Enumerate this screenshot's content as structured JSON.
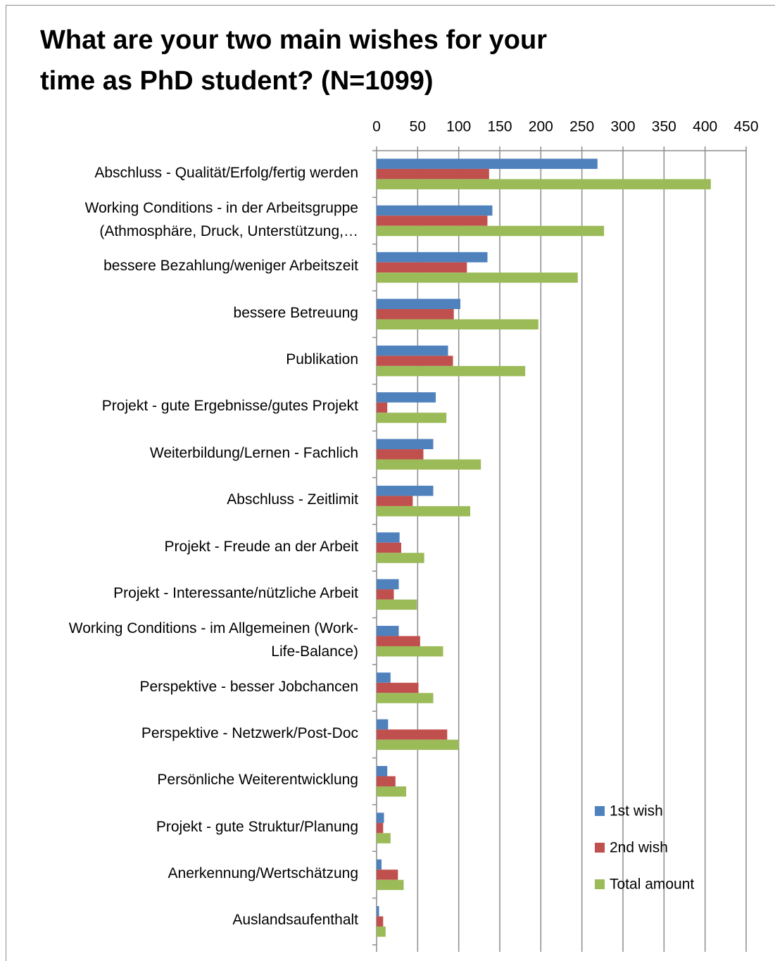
{
  "chart_data": {
    "type": "bar",
    "orientation": "horizontal",
    "title": "What are your two main wishes for your\ntime as PhD student? (N=1099)",
    "categories": [
      "Abschluss - Qualität/Erfolg/fertig werden",
      "Working Conditions - in der Arbeitsgruppe\n(Athmosphäre, Druck, Unterstützung,…",
      "bessere Bezahlung/weniger Arbeitszeit",
      "bessere Betreuung",
      "Publikation",
      "Projekt - gute Ergebnisse/gutes Projekt",
      "Weiterbildung/Lernen - Fachlich",
      "Abschluss - Zeitlimit",
      "Projekt - Freude an der Arbeit",
      "Projekt - Interessante/nützliche Arbeit",
      "Working Conditions - im Allgemeinen (Work-\nLife-Balance)",
      "Perspektive - besser Jobchancen",
      "Perspektive - Netzwerk/Post-Doc",
      "Persönliche Weiterentwicklung",
      "Projekt - gute Struktur/Planung",
      "Anerkennung/Wertschätzung",
      "Auslandsaufenthalt"
    ],
    "series": [
      {
        "name": "1st wish",
        "color": "#4f81bd",
        "values": [
          269,
          141,
          135,
          102,
          87,
          72,
          69,
          69,
          28,
          27,
          27,
          17,
          14,
          13,
          9,
          6,
          3
        ]
      },
      {
        "name": "2nd wish",
        "color": "#c0504d",
        "values": [
          137,
          135,
          110,
          94,
          93,
          13,
          57,
          44,
          30,
          21,
          53,
          51,
          86,
          23,
          8,
          26,
          8
        ]
      },
      {
        "name": "Total amount",
        "color": "#9bbb59",
        "values": [
          407,
          277,
          245,
          197,
          181,
          85,
          127,
          114,
          58,
          49,
          81,
          69,
          100,
          36,
          17,
          33,
          11
        ]
      }
    ],
    "xlim": [
      0,
      450
    ],
    "xticks": [
      0,
      50,
      100,
      150,
      200,
      250,
      300,
      350,
      400,
      450
    ],
    "grid": true,
    "legend": "lower right"
  }
}
